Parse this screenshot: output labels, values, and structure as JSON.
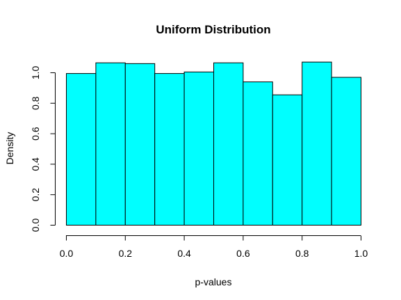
{
  "chart_data": {
    "type": "bar",
    "title": "Uniform Distribution",
    "xlabel": "p-values",
    "ylabel": "Density",
    "bin_edges": [
      0.0,
      0.1,
      0.2,
      0.3,
      0.4,
      0.5,
      0.6,
      0.7,
      0.8,
      0.9,
      1.0
    ],
    "values": [
      0.995,
      1.065,
      1.06,
      0.995,
      1.005,
      1.065,
      0.94,
      0.855,
      1.07,
      0.97
    ],
    "xlim": [
      0.0,
      1.0
    ],
    "ylim": [
      0.0,
      1.0
    ],
    "x_ticks": [
      "0.0",
      "0.2",
      "0.4",
      "0.6",
      "0.8",
      "1.0"
    ],
    "y_ticks": [
      "0.0",
      "0.2",
      "0.4",
      "0.6",
      "0.8",
      "1.0"
    ],
    "bar_color": "#00ffff",
    "grid": false,
    "legend": "none"
  }
}
